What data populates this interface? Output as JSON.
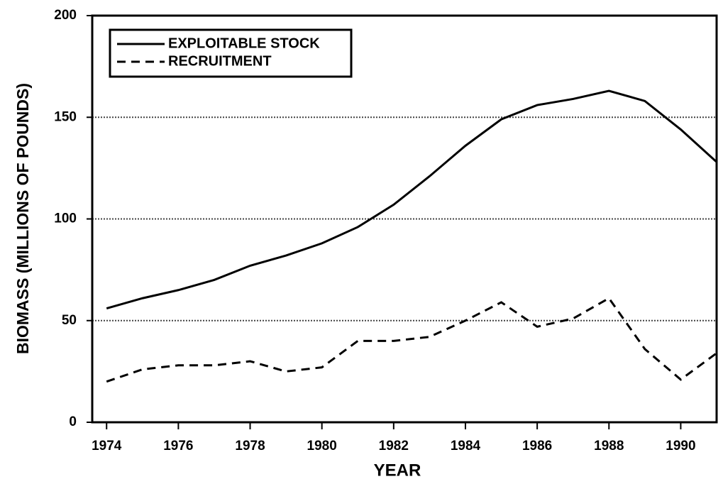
{
  "chart_data": {
    "type": "line",
    "x_label": "YEAR",
    "y_label": "BIOMASS (MILLIONS OF POUNDS)",
    "x": [
      1974,
      1975,
      1976,
      1977,
      1978,
      1979,
      1980,
      1981,
      1982,
      1983,
      1984,
      1985,
      1986,
      1987,
      1988,
      1989,
      1990,
      1991
    ],
    "series": [
      {
        "name": "EXPLOITABLE STOCK",
        "color": "#000000",
        "dash": "solid",
        "values": [
          56,
          61,
          65,
          70,
          77,
          82,
          88,
          96,
          107,
          121,
          136,
          149,
          156,
          159,
          163,
          158,
          144,
          128
        ]
      },
      {
        "name": "RECRUITMENT",
        "color": "#000000",
        "dash": "dashed",
        "values": [
          20,
          26,
          28,
          28,
          30,
          25,
          27,
          40,
          40,
          42,
          50,
          59,
          47,
          51,
          61,
          36,
          21,
          34
        ]
      }
    ],
    "xlim": [
      1973.6,
      1991
    ],
    "xticks": [
      1974,
      1976,
      1978,
      1980,
      1982,
      1984,
      1986,
      1988,
      1990
    ],
    "ylim": [
      0,
      200
    ],
    "yticks": [
      0,
      50,
      100,
      150,
      200
    ],
    "grid": true,
    "legend": "upper left"
  }
}
